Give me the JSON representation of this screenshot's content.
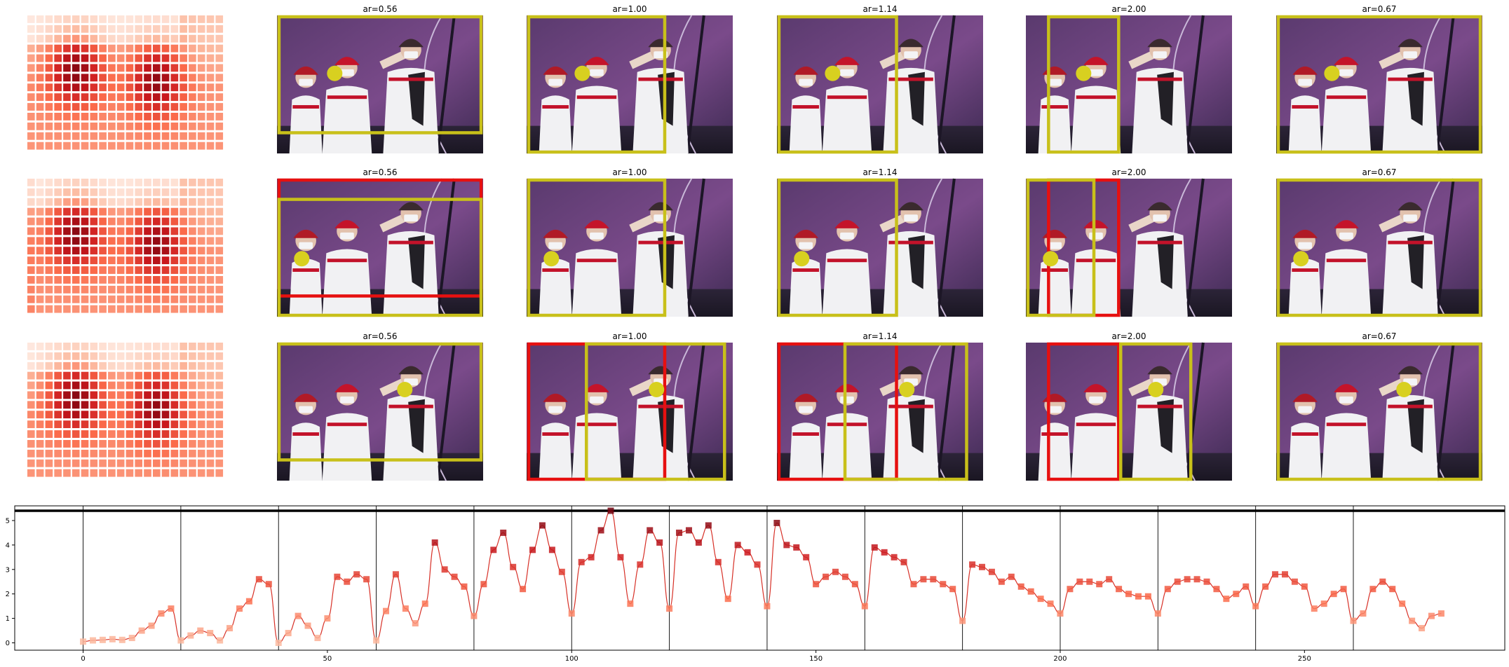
{
  "panels": {
    "rows": [
      {
        "titles": [
          "ar=0.56",
          "ar=1.00",
          "ar=1.14",
          "ar=2.00",
          "ar=0.67"
        ]
      },
      {
        "titles": [
          "ar=0.56",
          "ar=1.00",
          "ar=1.14",
          "ar=2.00",
          "ar=0.67"
        ]
      },
      {
        "titles": [
          "ar=0.56",
          "ar=1.00",
          "ar=1.14",
          "ar=2.00",
          "ar=0.67"
        ]
      }
    ],
    "box_colors": {
      "selected": "#c8c01a",
      "alternate": "#e61010"
    },
    "marker_color": "#d8d020",
    "heatmap_colormap": "Reds"
  },
  "chart_data": {
    "type": "line",
    "title": "",
    "xlabel": "",
    "ylabel": "",
    "xlim": [
      -14,
      291
    ],
    "ylim": [
      -0.3,
      5.6
    ],
    "xticks": [
      0,
      50,
      100,
      150,
      200,
      250
    ],
    "yticks": [
      0,
      1,
      2,
      3,
      4,
      5
    ],
    "horizontal_line": 5.4,
    "vertical_lines": [
      0,
      20,
      40,
      60,
      80,
      100,
      120,
      140,
      160,
      180,
      200,
      220,
      240,
      260
    ],
    "series": [
      {
        "color": "#d73027",
        "x": [
          0,
          2,
          4,
          6,
          8,
          10,
          12,
          14,
          16,
          18,
          20,
          22,
          24,
          26,
          28,
          30,
          32,
          34,
          36,
          38,
          40,
          42,
          44,
          46,
          48,
          50,
          52,
          54,
          56,
          58,
          60,
          62,
          64,
          66,
          68,
          70,
          72,
          74,
          76,
          78,
          80,
          82,
          84,
          86,
          88,
          90,
          92,
          94,
          96,
          98,
          100,
          102,
          104,
          106,
          108,
          110,
          112,
          114,
          116,
          118,
          120,
          122,
          124,
          126,
          128,
          130,
          132,
          134,
          136,
          138,
          140,
          142,
          144,
          146,
          148,
          150,
          152,
          154,
          156,
          158,
          160,
          162,
          164,
          166,
          168,
          170,
          172,
          174,
          176,
          178,
          180,
          182,
          184,
          186,
          188,
          190,
          192,
          194,
          196,
          198,
          200,
          202,
          204,
          206,
          208,
          210,
          212,
          214,
          216,
          218,
          220,
          222,
          224,
          226,
          228,
          230,
          232,
          234,
          236,
          238,
          240,
          242,
          244,
          246,
          248,
          250,
          252,
          254,
          256,
          258,
          260,
          262,
          264,
          266,
          268,
          270,
          272,
          274,
          276,
          278
        ],
        "y": [
          0.05,
          0.1,
          0.12,
          0.15,
          0.12,
          0.2,
          0.5,
          0.7,
          1.2,
          1.4,
          0.1,
          0.3,
          0.5,
          0.4,
          0.1,
          0.6,
          1.4,
          1.7,
          2.6,
          2.4,
          0.0,
          0.4,
          1.1,
          0.7,
          0.2,
          1.0,
          2.7,
          2.5,
          2.8,
          2.6,
          0.1,
          1.3,
          2.8,
          1.4,
          0.8,
          1.6,
          4.1,
          3.0,
          2.7,
          2.3,
          1.1,
          2.4,
          3.8,
          4.5,
          3.1,
          2.2,
          3.8,
          4.8,
          3.8,
          2.9,
          1.2,
          3.3,
          3.5,
          4.6,
          5.4,
          3.5,
          1.6,
          3.2,
          4.6,
          4.1,
          1.4,
          4.5,
          4.6,
          4.1,
          4.8,
          3.3,
          1.8,
          4.0,
          3.7,
          3.2,
          1.5,
          4.9,
          4.0,
          3.9,
          3.5,
          2.4,
          2.7,
          2.9,
          2.7,
          2.4,
          1.5,
          3.9,
          3.7,
          3.5,
          3.3,
          2.4,
          2.6,
          2.6,
          2.4,
          2.2,
          0.9,
          3.2,
          3.1,
          2.9,
          2.5,
          2.7,
          2.3,
          2.1,
          1.8,
          1.6,
          1.2,
          2.2,
          2.5,
          2.5,
          2.4,
          2.6,
          2.2,
          2.0,
          1.9,
          1.9,
          1.2,
          2.2,
          2.5,
          2.6,
          2.6,
          2.5,
          2.2,
          1.8,
          2.0,
          2.3,
          1.5,
          2.3,
          2.8,
          2.8,
          2.5,
          2.3,
          1.4,
          1.6,
          2.0,
          2.2,
          0.9,
          1.2,
          2.2,
          2.5,
          2.2,
          1.6,
          0.9,
          0.6,
          1.1,
          1.2
        ]
      }
    ]
  }
}
